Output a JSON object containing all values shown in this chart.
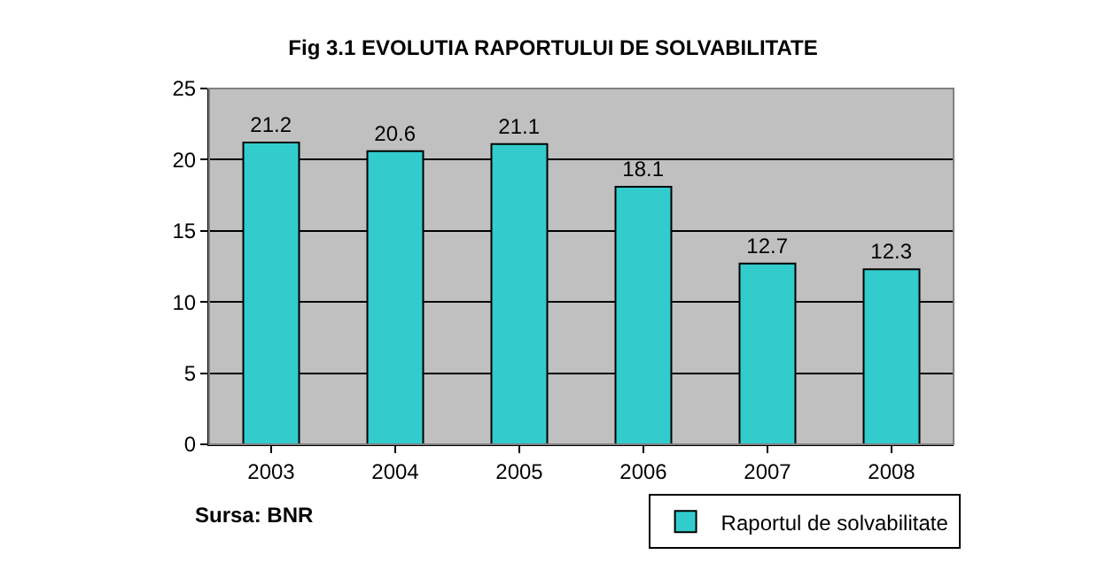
{
  "chart_data": {
    "type": "bar",
    "title": "Fig 3.1 EVOLUTIA RAPORTULUI DE SOLVABILITATE",
    "categories": [
      "2003",
      "2004",
      "2005",
      "2006",
      "2007",
      "2008"
    ],
    "series": [
      {
        "name": "Raportul de solvabilitate",
        "color": "#33cccc",
        "values": [
          21.2,
          20.6,
          21.1,
          18.1,
          12.7,
          12.3
        ]
      }
    ],
    "ylim": [
      0,
      25
    ],
    "yticks": [
      0,
      5,
      10,
      15,
      20,
      25
    ],
    "grid": "y",
    "data_labels": true,
    "legend": "bottom right",
    "annotations": [
      "Sursa: BNR"
    ]
  }
}
